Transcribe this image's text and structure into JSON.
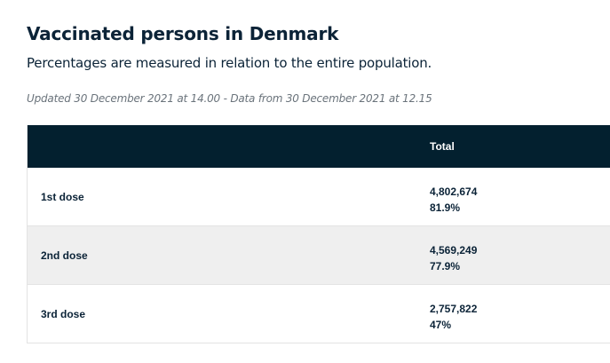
{
  "header": {
    "title": "Vaccinated persons in Denmark",
    "subtitle": "Percentages are measured in relation to the entire population.",
    "updated": "Updated 30 December 2021 at 14.00 - Data from 30 December 2021 at 12.15"
  },
  "table": {
    "columns": [
      "",
      "Total"
    ],
    "rows": [
      {
        "label": "1st dose",
        "count": "4,802,674",
        "percent": "81.9%"
      },
      {
        "label": "2nd dose",
        "count": "4,569,249",
        "percent": "77.9%"
      },
      {
        "label": "3rd dose",
        "count": "2,757,822",
        "percent": "47%"
      }
    ]
  },
  "colors": {
    "header_bg": "#03202f",
    "alt_row_bg": "#efefef",
    "text": "#0b2337"
  }
}
